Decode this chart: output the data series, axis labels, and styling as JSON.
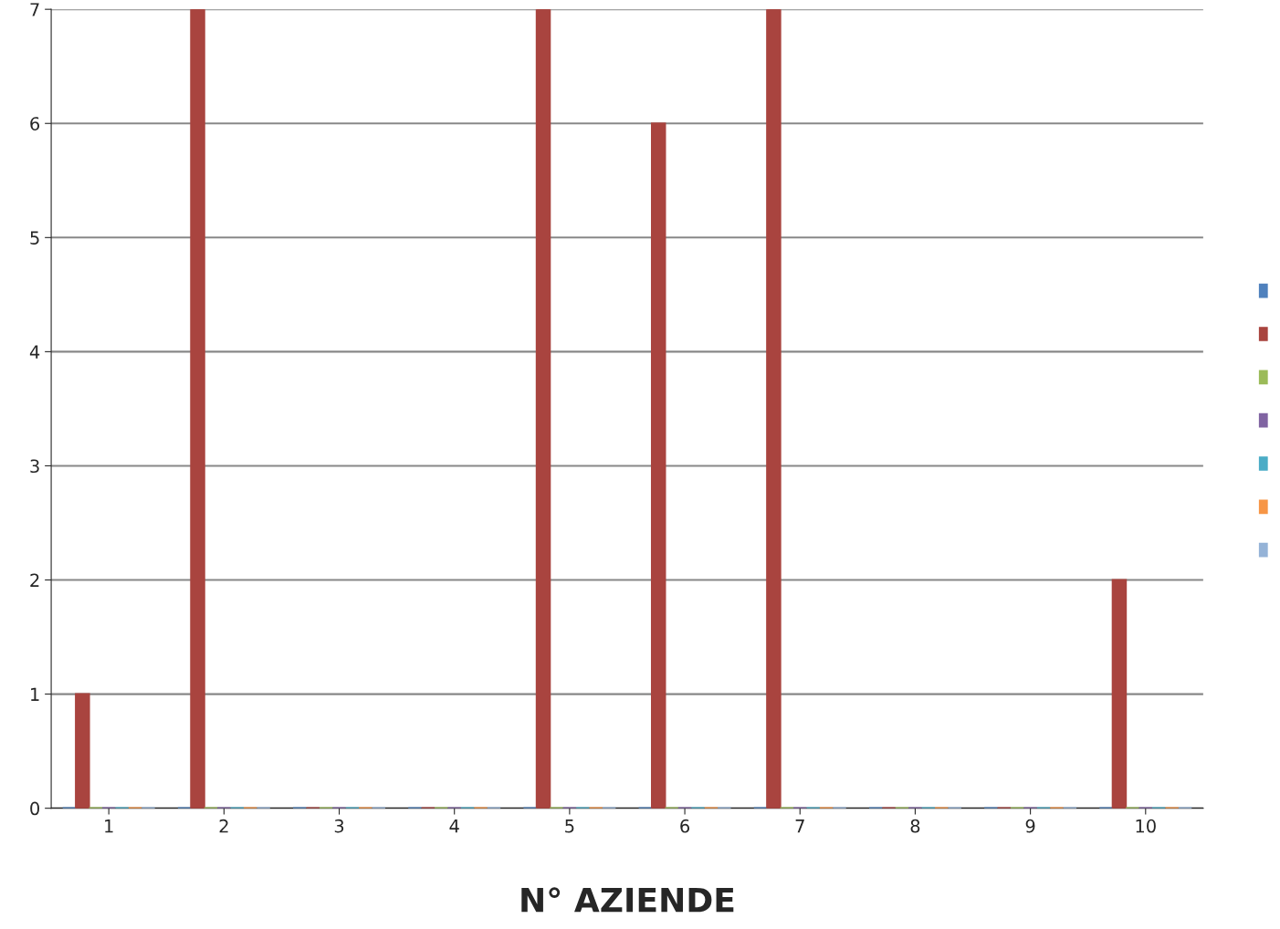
{
  "chart_data": {
    "type": "bar",
    "xlabel": "N° AZIENDE",
    "categories": [
      "1",
      "2",
      "3",
      "4",
      "5",
      "6",
      "7",
      "8",
      "9",
      "10"
    ],
    "series": [
      {
        "color": "#4f81bd",
        "values": [
          0,
          0,
          0,
          0,
          0,
          0,
          0,
          0,
          0,
          0
        ]
      },
      {
        "color": "#a9443f",
        "values": [
          1,
          7,
          0,
          0,
          7,
          6,
          7,
          0,
          0,
          2
        ]
      },
      {
        "color": "#9bbb59",
        "values": [
          0,
          0,
          0,
          0,
          0,
          0,
          0,
          0,
          0,
          0
        ]
      },
      {
        "color": "#8064a2",
        "values": [
          0,
          0,
          0,
          0,
          0,
          0,
          0,
          0,
          0,
          0
        ]
      },
      {
        "color": "#4bacc6",
        "values": [
          0,
          0,
          0,
          0,
          0,
          0,
          0,
          0,
          0,
          0
        ]
      },
      {
        "color": "#f79646",
        "values": [
          0,
          0,
          0,
          0,
          0,
          0,
          0,
          0,
          0,
          0
        ]
      },
      {
        "color": "#95b3d7",
        "values": [
          0,
          0,
          0,
          0,
          0,
          0,
          0,
          0,
          0,
          0
        ]
      }
    ],
    "ylim": [
      0,
      7
    ],
    "yticks": [
      0,
      1,
      2,
      3,
      4,
      5,
      6,
      7
    ],
    "grid": "y"
  }
}
